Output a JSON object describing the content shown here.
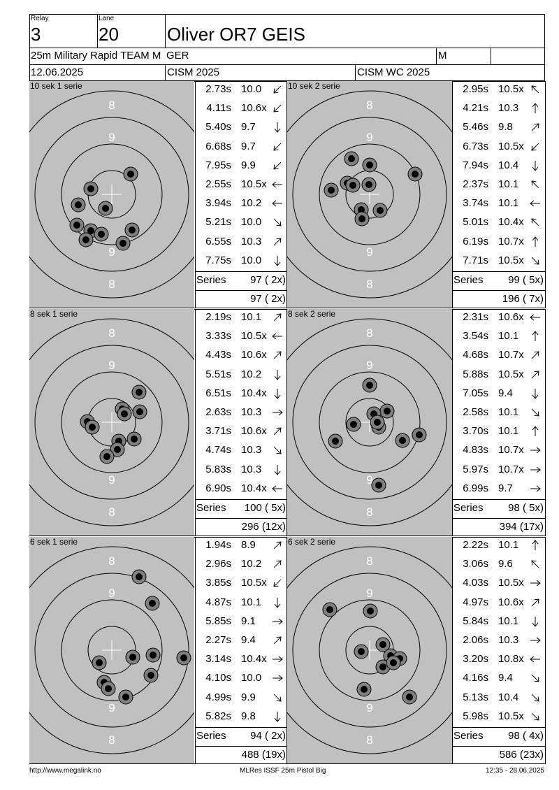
{
  "header": {
    "relay_label": "Relay",
    "relay_value": "3",
    "lane_label": "Lane",
    "lane_value": "20",
    "shooter_name": "Oliver OR7 GEIS",
    "event": "25m Military Rapid TEAM M",
    "nation": "GER",
    "category": "M",
    "date": "12.06.2025",
    "competition": "CISM 2025",
    "match": "CISM WC 2025"
  },
  "series_label": "Series",
  "panels": [
    {
      "title": "10 sek 1 serie",
      "series_total": "97 ( 2x)",
      "cumulative": "97 ( 2x)",
      "shots": [
        {
          "time": "2.73s",
          "score": "10.0",
          "dir": "sw"
        },
        {
          "time": "4.11s",
          "score": "10.6x",
          "dir": "sw"
        },
        {
          "time": "5.40s",
          "score": "9.7",
          "dir": "s"
        },
        {
          "time": "6.68s",
          "score": "9.7",
          "dir": "sw"
        },
        {
          "time": "7.95s",
          "score": "9.9",
          "dir": "sw"
        },
        {
          "time": "2.55s",
          "score": "10.5x",
          "dir": "w"
        },
        {
          "time": "3.94s",
          "score": "10.2",
          "dir": "w"
        },
        {
          "time": "5.21s",
          "score": "10.0",
          "dir": "se"
        },
        {
          "time": "6.55s",
          "score": "10.3",
          "dir": "ne"
        },
        {
          "time": "7.75s",
          "score": "10.0",
          "dir": "s"
        }
      ],
      "hits": [
        [
          187,
          249
        ],
        [
          130,
          270
        ],
        [
          112,
          293
        ],
        [
          151,
          298
        ],
        [
          110,
          322
        ],
        [
          130,
          330
        ],
        [
          145,
          335
        ],
        [
          123,
          343
        ],
        [
          176,
          348
        ],
        [
          189,
          329
        ]
      ]
    },
    {
      "title": "10 sek 2 serie",
      "series_total": "99 ( 5x)",
      "cumulative": "196 ( 7x)",
      "shots": [
        {
          "time": "2.95s",
          "score": "10.5x",
          "dir": "nw"
        },
        {
          "time": "4.21s",
          "score": "10.3",
          "dir": "n"
        },
        {
          "time": "5.46s",
          "score": "9.8",
          "dir": "ne"
        },
        {
          "time": "6.73s",
          "score": "10.5x",
          "dir": "sw"
        },
        {
          "time": "7.94s",
          "score": "10.4",
          "dir": "s"
        },
        {
          "time": "2.37s",
          "score": "10.1",
          "dir": "nw"
        },
        {
          "time": "3.74s",
          "score": "10.1",
          "dir": "w"
        },
        {
          "time": "5.01s",
          "score": "10.4x",
          "dir": "nw"
        },
        {
          "time": "6.19s",
          "score": "10.7x",
          "dir": "n"
        },
        {
          "time": "7.71s",
          "score": "10.5x",
          "dir": "se"
        }
      ],
      "hits": [
        [
          503,
          227
        ],
        [
          529,
          236
        ],
        [
          594,
          249
        ],
        [
          497,
          262
        ],
        [
          528,
          264
        ],
        [
          474,
          272
        ],
        [
          517,
          300
        ],
        [
          544,
          301
        ],
        [
          518,
          313
        ],
        [
          505,
          265
        ]
      ]
    },
    {
      "title": "8 sek 1 serie",
      "series_total": "100 ( 5x)",
      "cumulative": "296 (12x)",
      "shots": [
        {
          "time": "2.19s",
          "score": "10.1",
          "dir": "ne"
        },
        {
          "time": "3.33s",
          "score": "10.5x",
          "dir": "w"
        },
        {
          "time": "4.43s",
          "score": "10.6x",
          "dir": "ne"
        },
        {
          "time": "5.51s",
          "score": "10.2",
          "dir": "s"
        },
        {
          "time": "6.51s",
          "score": "10.4x",
          "dir": "s"
        },
        {
          "time": "2.63s",
          "score": "10.3",
          "dir": "e"
        },
        {
          "time": "3.71s",
          "score": "10.6x",
          "dir": "ne"
        },
        {
          "time": "4.74s",
          "score": "10.3",
          "dir": "se"
        },
        {
          "time": "5.83s",
          "score": "10.3",
          "dir": "s"
        },
        {
          "time": "6.90s",
          "score": "10.4x",
          "dir": "w"
        }
      ],
      "hits": [
        [
          199,
          561
        ],
        [
          175,
          585
        ],
        [
          200,
          589
        ],
        [
          125,
          603
        ],
        [
          132,
          611
        ],
        [
          192,
          628
        ],
        [
          170,
          631
        ],
        [
          168,
          643
        ],
        [
          153,
          653
        ],
        [
          178,
          592
        ]
      ]
    },
    {
      "title": "8 sek 2 serie",
      "series_total": "98 ( 5x)",
      "cumulative": "394 (17x)",
      "shots": [
        {
          "time": "2.31s",
          "score": "10.6x",
          "dir": "w"
        },
        {
          "time": "3.54s",
          "score": "10.1",
          "dir": "n"
        },
        {
          "time": "4.68s",
          "score": "10.7x",
          "dir": "ne"
        },
        {
          "time": "5.88s",
          "score": "10.5x",
          "dir": "ne"
        },
        {
          "time": "7.05s",
          "score": "9.4",
          "dir": "s"
        },
        {
          "time": "2.58s",
          "score": "10.1",
          "dir": "se"
        },
        {
          "time": "3.70s",
          "score": "10.1",
          "dir": "n"
        },
        {
          "time": "4.83s",
          "score": "10.7x",
          "dir": "e"
        },
        {
          "time": "5.97s",
          "score": "10.7x",
          "dir": "e"
        },
        {
          "time": "6.99s",
          "score": "9.7",
          "dir": "e"
        }
      ],
      "hits": [
        [
          529,
          551
        ],
        [
          554,
          588
        ],
        [
          535,
          592
        ],
        [
          506,
          607
        ],
        [
          542,
          611
        ],
        [
          576,
          630
        ],
        [
          600,
          622
        ],
        [
          480,
          631
        ],
        [
          542,
          694
        ],
        [
          540,
          604
        ]
      ]
    },
    {
      "title": "6 sek 1 serie",
      "series_total": "94 ( 2x)",
      "cumulative": "488 (19x)",
      "shots": [
        {
          "time": "1.94s",
          "score": "8.9",
          "dir": "ne"
        },
        {
          "time": "2.96s",
          "score": "10.2",
          "dir": "ne"
        },
        {
          "time": "3.85s",
          "score": "10.5x",
          "dir": "sw"
        },
        {
          "time": "4.87s",
          "score": "10.1",
          "dir": "s"
        },
        {
          "time": "5.85s",
          "score": "9.1",
          "dir": "e"
        },
        {
          "time": "2.27s",
          "score": "9.4",
          "dir": "ne"
        },
        {
          "time": "3.14s",
          "score": "10.4x",
          "dir": "e"
        },
        {
          "time": "4.10s",
          "score": "10.0",
          "dir": "e"
        },
        {
          "time": "4.99s",
          "score": "9.9",
          "dir": "se"
        },
        {
          "time": "5.82s",
          "score": "9.8",
          "dir": "s"
        }
      ],
      "hits": [
        [
          199,
          825
        ],
        [
          218,
          863
        ],
        [
          142,
          948
        ],
        [
          190,
          940
        ],
        [
          219,
          937
        ],
        [
          263,
          941
        ],
        [
          216,
          966
        ],
        [
          149,
          976
        ],
        [
          155,
          985
        ],
        [
          180,
          997
        ]
      ]
    },
    {
      "title": "6 sek 2 serie",
      "series_total": "98 ( 4x)",
      "cumulative": "586 (23x)",
      "shots": [
        {
          "time": "2.22s",
          "score": "10.1",
          "dir": "n"
        },
        {
          "time": "3.06s",
          "score": "9.6",
          "dir": "nw"
        },
        {
          "time": "4.03s",
          "score": "10.5x",
          "dir": "e"
        },
        {
          "time": "4.97s",
          "score": "10.6x",
          "dir": "ne"
        },
        {
          "time": "5.84s",
          "score": "10.1",
          "dir": "s"
        },
        {
          "time": "2.06s",
          "score": "10.3",
          "dir": "e"
        },
        {
          "time": "3.20s",
          "score": "10.8x",
          "dir": "w"
        },
        {
          "time": "4.16s",
          "score": "9.4",
          "dir": "se"
        },
        {
          "time": "5.13s",
          "score": "10.4",
          "dir": "se"
        },
        {
          "time": "5.98s",
          "score": "10.5x",
          "dir": "se"
        }
      ],
      "hits": [
        [
          472,
          872
        ],
        [
          530,
          874
        ],
        [
          548,
          922
        ],
        [
          517,
          932
        ],
        [
          559,
          938
        ],
        [
          572,
          942
        ],
        [
          548,
          954
        ],
        [
          563,
          948
        ],
        [
          521,
          986
        ],
        [
          586,
          997
        ]
      ]
    }
  ],
  "footer": {
    "url": "http://www.megalink.no",
    "software": "MLRes ISSF 25m Pistol Big",
    "timestamp": "12:35 - 28.06.2025"
  }
}
